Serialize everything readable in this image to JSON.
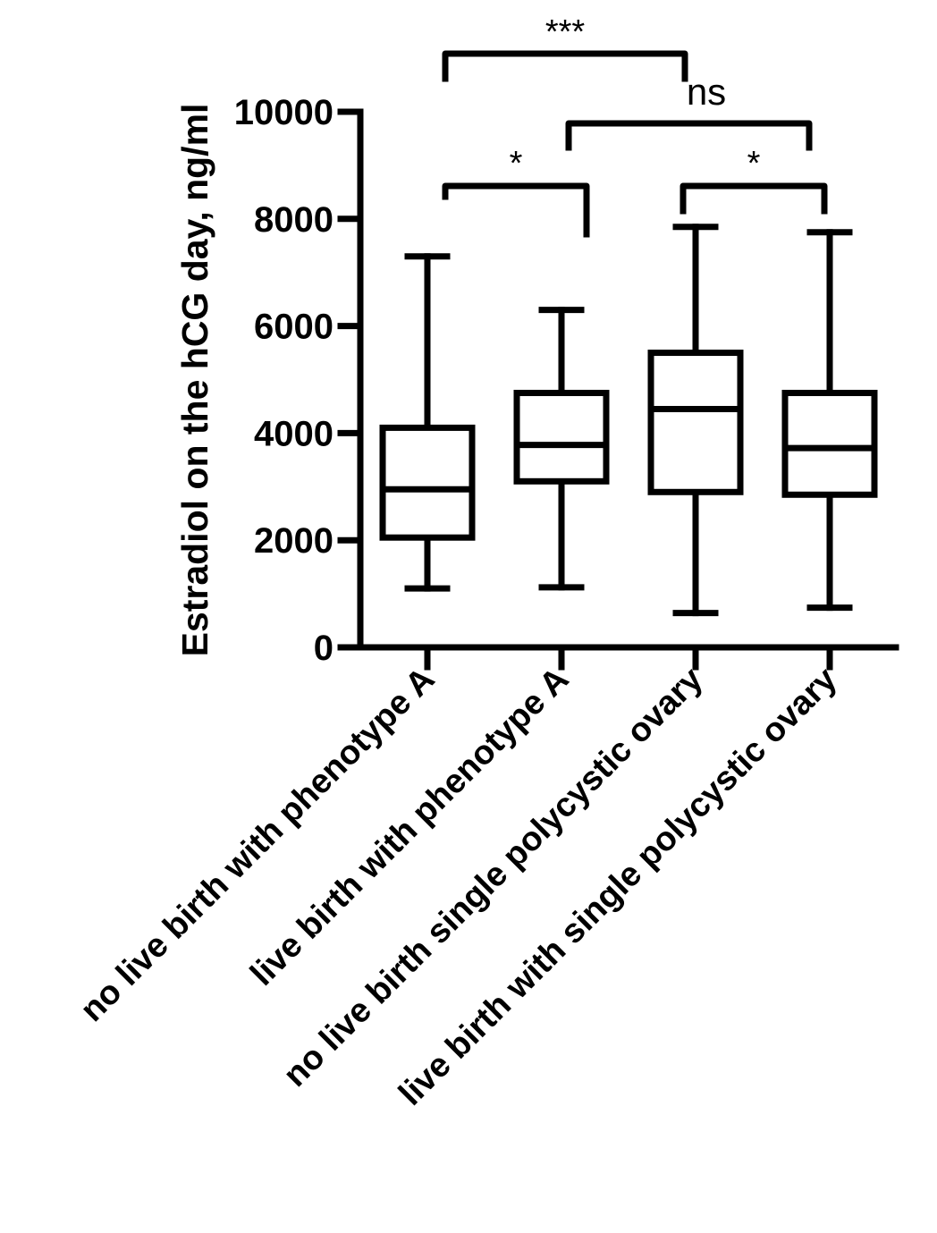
{
  "chart_data": {
    "type": "box",
    "ylabel": "Estradiol on the hCG day, ng/ml",
    "xlabel": "",
    "ylim": [
      0,
      10000
    ],
    "yticks": [
      0,
      2000,
      4000,
      6000,
      8000,
      10000
    ],
    "ytick_labels": [
      "0",
      "2000",
      "4000",
      "6000",
      "8000",
      "10000"
    ],
    "categories": [
      "no live birth with phenotype A",
      "live birth with phenotype A",
      "no live birth single polycystic ovary",
      "live birth with single polycystic ovary"
    ],
    "boxes": [
      {
        "min": 1100,
        "q1": 2050,
        "median": 2950,
        "q3": 4100,
        "max": 7300
      },
      {
        "min": 1120,
        "q1": 3100,
        "median": 3780,
        "q3": 4750,
        "max": 6300
      },
      {
        "min": 640,
        "q1": 2900,
        "median": 4450,
        "q3": 5500,
        "max": 7850
      },
      {
        "min": 740,
        "q1": 2850,
        "median": 3720,
        "q3": 4750,
        "max": 7750
      }
    ],
    "comparisons": [
      {
        "groups": [
          0,
          1
        ],
        "label": "*"
      },
      {
        "groups": [
          2,
          3
        ],
        "label": "*"
      },
      {
        "groups": [
          1,
          3
        ],
        "label": "ns"
      },
      {
        "groups": [
          0,
          2
        ],
        "label": "***"
      }
    ],
    "colors": {
      "stroke": "#000000",
      "background": "#ffffff"
    }
  }
}
